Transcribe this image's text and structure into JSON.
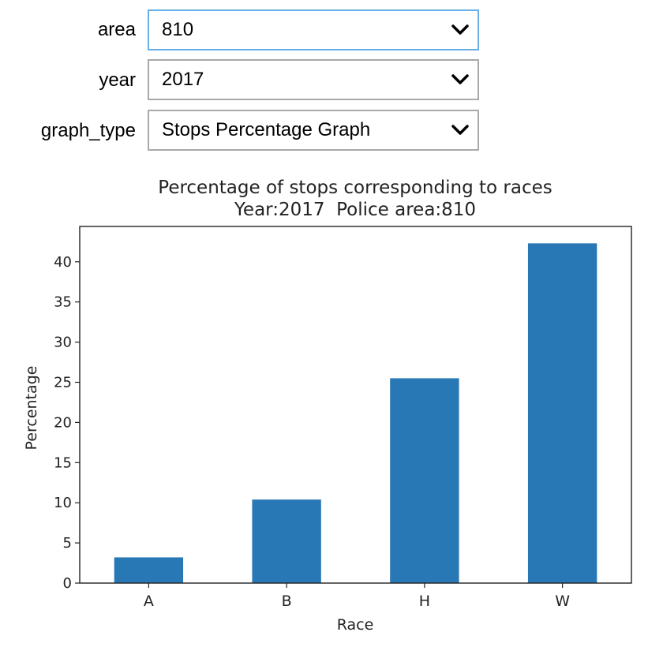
{
  "widgets": {
    "area": {
      "label": "area",
      "value": "810"
    },
    "year": {
      "label": "year",
      "value": "2017"
    },
    "graph_type": {
      "label": "graph_type",
      "value": "Stops Percentage Graph"
    }
  },
  "colors": {
    "bar": "#2878b5",
    "focus_border": "#66afe9"
  },
  "icons": {
    "dropdown": "chevron-down-icon"
  },
  "chart_data": {
    "type": "bar",
    "title": "Percentage of stops corresponding to races",
    "subtitle": "Year:2017  Police area:810",
    "xlabel": "Race",
    "ylabel": "Percentage",
    "categories": [
      "A",
      "B",
      "H",
      "W"
    ],
    "values": [
      3.2,
      10.4,
      25.5,
      42.3
    ],
    "ylim": [
      0,
      44.4
    ],
    "yticks": [
      0,
      5,
      10,
      15,
      20,
      25,
      30,
      35,
      40
    ],
    "grid": false
  }
}
